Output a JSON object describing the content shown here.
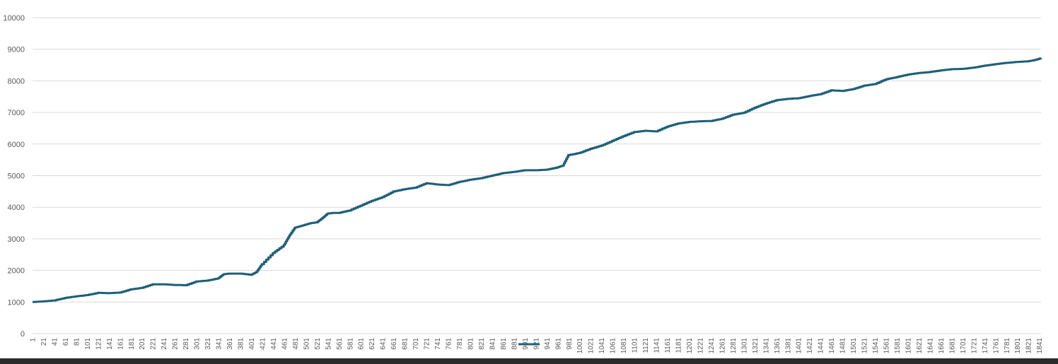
{
  "chart_data": {
    "type": "line",
    "title": "",
    "xlabel": "",
    "ylabel": "",
    "ylim": [
      0,
      10000
    ],
    "yticks": [
      0,
      1000,
      2000,
      3000,
      4000,
      5000,
      6000,
      7000,
      8000,
      9000,
      10000
    ],
    "x_range": [
      1,
      1844
    ],
    "x_tick_step": 20,
    "grid": "horizontal",
    "legend": "bottom-center",
    "colors": {
      "series": "#1f5f7a",
      "grid": "#d9d9d9",
      "text": "#595959"
    },
    "series": [
      {
        "name": "",
        "x": [
          1,
          20,
          40,
          60,
          80,
          100,
          120,
          140,
          160,
          180,
          200,
          220,
          240,
          260,
          280,
          300,
          320,
          340,
          350,
          360,
          380,
          400,
          410,
          420,
          440,
          460,
          470,
          480,
          490,
          500,
          510,
          520,
          530,
          540,
          550,
          560,
          580,
          600,
          620,
          640,
          660,
          680,
          700,
          720,
          740,
          760,
          780,
          800,
          820,
          840,
          860,
          880,
          900,
          920,
          940,
          960,
          970,
          980,
          1000,
          1020,
          1040,
          1060,
          1080,
          1100,
          1120,
          1140,
          1160,
          1180,
          1200,
          1220,
          1240,
          1260,
          1280,
          1300,
          1320,
          1340,
          1360,
          1380,
          1400,
          1420,
          1440,
          1460,
          1480,
          1500,
          1520,
          1540,
          1560,
          1580,
          1600,
          1620,
          1640,
          1660,
          1680,
          1700,
          1720,
          1740,
          1760,
          1780,
          1800,
          1820,
          1830,
          1844
        ],
        "values": [
          1000,
          1020,
          1050,
          1130,
          1180,
          1220,
          1290,
          1280,
          1300,
          1400,
          1450,
          1560,
          1560,
          1540,
          1530,
          1650,
          1680,
          1750,
          1880,
          1900,
          1900,
          1860,
          1950,
          2200,
          2550,
          2800,
          3100,
          3350,
          3400,
          3450,
          3500,
          3520,
          3650,
          3800,
          3820,
          3820,
          3900,
          4050,
          4200,
          4320,
          4500,
          4570,
          4620,
          4760,
          4720,
          4700,
          4800,
          4870,
          4920,
          5000,
          5080,
          5120,
          5170,
          5170,
          5190,
          5260,
          5320,
          5650,
          5720,
          5850,
          5950,
          6100,
          6250,
          6380,
          6420,
          6400,
          6550,
          6650,
          6700,
          6720,
          6730,
          6800,
          6930,
          6990,
          7150,
          7280,
          7390,
          7430,
          7450,
          7520,
          7580,
          7700,
          7680,
          7740,
          7850,
          7900,
          8050,
          8120,
          8200,
          8250,
          8280,
          8330,
          8370,
          8380,
          8420,
          8480,
          8530,
          8570,
          8600,
          8620,
          8650,
          8720
        ]
      }
    ]
  }
}
